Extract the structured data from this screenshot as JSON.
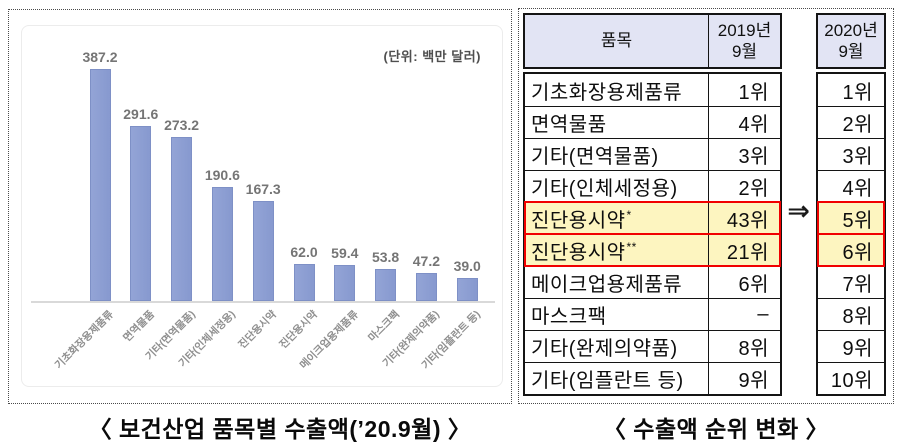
{
  "unit_label": "(단위: 백만 달러)",
  "captions": {
    "chart": "〈 보건산업 품목별 수출액(’20.9월) 〉",
    "table": "〈 수출액 순위 변화 〉"
  },
  "colors": {
    "bar_fill": "#8c9ed3",
    "bar_border": "#7e90c6",
    "value_label": "#757575",
    "table_header_bg": "#e2e4f4",
    "highlight_bg": "#fdf5c0",
    "highlight_border": "#f10000"
  },
  "chart_data": [
    {
      "type": "bar",
      "title": "보건산업 품목별 수출액(’20.9월)",
      "unit": "백만 달러",
      "categories": [
        "기초화장용제품류",
        "면역물품",
        "기타(면역물품)",
        "기타(인체세정용)",
        "진단용시약",
        "진단용시약",
        "메이크업용제품류",
        "마스크팩",
        "기타(완제의약품)",
        "기타(임플란트 등)"
      ],
      "values": [
        387.2,
        291.6,
        273.2,
        190.6,
        167.3,
        62.0,
        59.4,
        53.8,
        47.2,
        39.0
      ],
      "xlabel": "",
      "ylabel": "백만 달러",
      "ylim": [
        0,
        420
      ],
      "grid": false,
      "legend": "none",
      "value_labels_shown": true
    },
    {
      "type": "table",
      "title": "수출액 순위 변화",
      "arrow": "⇒",
      "header": {
        "item": "품목",
        "y2019": "2019년\n9월",
        "y2020": "2020년\n9월"
      },
      "columns": [
        "품목",
        "2019년 9월",
        "2020년 9월"
      ],
      "rows": [
        {
          "item": "기초화장용제품류",
          "rank_2019": "1위",
          "rank_2020": "1위",
          "highlight": false
        },
        {
          "item": "면역물품",
          "rank_2019": "4위",
          "rank_2020": "2위",
          "highlight": false
        },
        {
          "item": "기타(면역물품)",
          "rank_2019": "3위",
          "rank_2020": "3위",
          "highlight": false
        },
        {
          "item": "기타(인체세정용)",
          "rank_2019": "2위",
          "rank_2020": "4위",
          "highlight": false
        },
        {
          "item": "진단용시약*",
          "rank_2019": "43위",
          "rank_2020": "5위",
          "highlight": true
        },
        {
          "item": "진단용시약**",
          "rank_2019": "21위",
          "rank_2020": "6위",
          "highlight": true
        },
        {
          "item": "메이크업용제품류",
          "rank_2019": "6위",
          "rank_2020": "7위",
          "highlight": false
        },
        {
          "item": "마스크팩",
          "rank_2019": "–",
          "rank_2020": "8위",
          "highlight": false
        },
        {
          "item": "기타(완제의약품)",
          "rank_2019": "8위",
          "rank_2020": "9위",
          "highlight": false
        },
        {
          "item": "기타(임플란트 등)",
          "rank_2019": "9위",
          "rank_2020": "10위",
          "highlight": false
        }
      ]
    }
  ]
}
